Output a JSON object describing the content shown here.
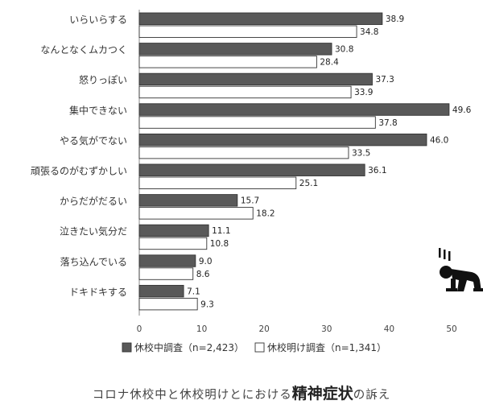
{
  "chart_data": {
    "type": "bar",
    "orientation": "horizontal",
    "categories": [
      "いらいらする",
      "なんとなくムカつく",
      "怒りっぽい",
      "集中できない",
      "やる気がでない",
      "頑張るのがむずかしい",
      "からだがだるい",
      "泣きたい気分だ",
      "落ち込んでいる",
      "ドキドキする"
    ],
    "series": [
      {
        "name": "休校中調査（n=2,423）",
        "values": [
          38.9,
          30.8,
          37.3,
          49.6,
          46.0,
          36.1,
          15.7,
          11.1,
          9.0,
          7.1
        ],
        "value_labels": [
          "38.9",
          "30.8",
          "37.3",
          "49.6",
          "46.0",
          "36.1",
          "15.7",
          "11.1",
          "9.0",
          "7.1"
        ],
        "color": "#595959"
      },
      {
        "name": "休校明け調査（n=1,341）",
        "values": [
          34.8,
          28.4,
          33.9,
          37.8,
          33.5,
          25.1,
          18.2,
          10.8,
          8.6,
          9.3
        ],
        "value_labels": [
          "34.8",
          "28.4",
          "33.9",
          "37.8",
          "33.5",
          "25.1",
          "18.2",
          "10.8",
          "8.6",
          "9.3"
        ],
        "color": "#ffffff"
      }
    ],
    "xlim": [
      0,
      50
    ],
    "xticks": [
      "0",
      "10",
      "20",
      "30",
      "40",
      "50"
    ],
    "grid": false,
    "legend": "bottom"
  },
  "caption": {
    "prefix": "コロナ休校中と休校明けとにおける",
    "emphasis": "精神症状",
    "suffix": "の訴え"
  },
  "icon": "depressed-person-icon"
}
